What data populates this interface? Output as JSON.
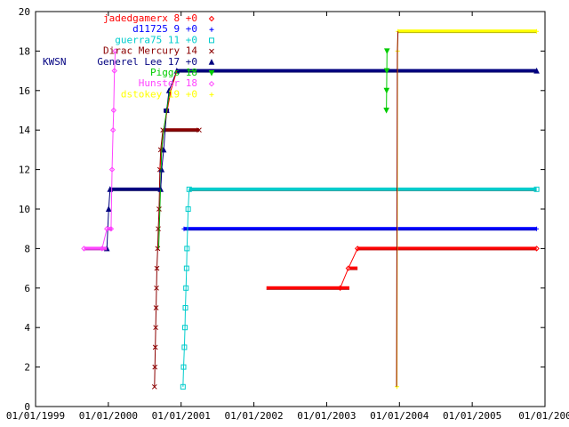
{
  "chart_data": {
    "type": "line",
    "title": "",
    "xlabel": "",
    "ylabel": "",
    "xlim": [
      "1999-01-01",
      "2006-01-01"
    ],
    "ylim": [
      0,
      20
    ],
    "grid": false,
    "legend_position": "top-left",
    "x_ticks": [
      "01/01/1999",
      "01/01/2000",
      "01/01/2001",
      "01/01/2002",
      "01/01/2003",
      "01/01/2004",
      "01/01/2005",
      "01/01/200"
    ],
    "y_ticks": [
      "0",
      "2",
      "4",
      "6",
      "8",
      "10",
      "12",
      "14",
      "16",
      "18",
      "20"
    ],
    "series": [
      {
        "name": "jadedgamerx 8 +0",
        "color": "#ff0000",
        "marker": "diamond",
        "points": [
          [
            "2003-03-10",
            6
          ],
          [
            "2003-04-20",
            7
          ],
          [
            "2003-06-05",
            8
          ],
          [
            "2005-11-20",
            8
          ]
        ],
        "bars": [
          [
            "2002-03-05",
            "2003-04-25",
            6
          ],
          [
            "2003-04-25",
            "2003-06-05",
            7
          ],
          [
            "2003-06-05",
            "2005-11-20",
            8
          ]
        ]
      },
      {
        "name": "d11725 9 +0",
        "color": "#0000ff",
        "marker": "plus",
        "points": [
          [
            "2001-01-15",
            9
          ],
          [
            "2005-11-20",
            9
          ]
        ],
        "bars": [
          [
            "2001-01-15",
            "2005-11-20",
            9
          ]
        ]
      },
      {
        "name": "guerra75 11 +0",
        "color": "#00cccc",
        "marker": "square",
        "points": [
          [
            "2001-01-10",
            1
          ],
          [
            "2001-01-13",
            2
          ],
          [
            "2001-01-17",
            3
          ],
          [
            "2001-01-20",
            4
          ],
          [
            "2001-01-22",
            5
          ],
          [
            "2001-01-25",
            6
          ],
          [
            "2001-01-28",
            7
          ],
          [
            "2001-01-30",
            8
          ],
          [
            "2001-02-05",
            10
          ],
          [
            "2001-02-10",
            11
          ],
          [
            "2005-11-20",
            11
          ]
        ],
        "bars": [
          [
            "2001-02-10",
            "2005-11-20",
            11
          ]
        ]
      },
      {
        "name": "Dirac Mercury 14",
        "color": "#8b0000",
        "marker": "x",
        "points": [
          [
            "2000-08-20",
            1
          ],
          [
            "2000-08-22",
            2
          ],
          [
            "2000-08-24",
            3
          ],
          [
            "2000-08-26",
            4
          ],
          [
            "2000-08-28",
            5
          ],
          [
            "2000-08-30",
            6
          ],
          [
            "2000-09-01",
            7
          ],
          [
            "2000-09-05",
            8
          ],
          [
            "2000-09-08",
            9
          ],
          [
            "2000-09-12",
            10
          ],
          [
            "2000-09-16",
            12
          ],
          [
            "2000-09-20",
            13
          ],
          [
            "2000-10-01",
            14
          ],
          [
            "2001-04-01",
            14
          ]
        ],
        "bars": [
          [
            "2000-10-01",
            "2001-04-01",
            14
          ]
        ]
      },
      {
        "name": "Generel Lee 17 +0",
        "color": "#000080",
        "marker": "triangle",
        "points": [
          [
            "1999-12-25",
            8
          ],
          [
            "2000-01-03",
            10
          ],
          [
            "2000-01-10",
            11
          ],
          [
            "2000-09-20",
            11
          ],
          [
            "2000-09-25",
            12
          ],
          [
            "2000-10-05",
            13
          ],
          [
            "2000-10-20",
            15
          ],
          [
            "2000-11-01",
            16
          ],
          [
            "2000-12-10",
            17
          ],
          [
            "2005-11-20",
            17
          ]
        ],
        "bars": [
          [
            "2000-01-10",
            "2000-09-20",
            11
          ],
          [
            "2000-10-05",
            "2000-11-01",
            15
          ],
          [
            "2000-12-10",
            "2005-11-20",
            17
          ]
        ]
      },
      {
        "name": "Piggs 18",
        "color": "#00cc00",
        "marker": "triangle-down",
        "points": [
          [
            "2003-10-28",
            15
          ],
          [
            "2003-10-29",
            16
          ],
          [
            "2003-10-30",
            17
          ],
          [
            "2003-10-31",
            18
          ]
        ],
        "bars": []
      },
      {
        "name": "Hunster 18",
        "color": "#ff44ff",
        "marker": "diamond",
        "points": [
          [
            "1999-09-01",
            8
          ],
          [
            "1999-12-01",
            8
          ],
          [
            "1999-12-25",
            9
          ],
          [
            "2000-01-15",
            9
          ],
          [
            "2000-01-20",
            12
          ],
          [
            "2000-01-25",
            14
          ],
          [
            "2000-01-28",
            15
          ],
          [
            "2000-02-01",
            17
          ],
          [
            "2000-02-05",
            18
          ]
        ],
        "bars": [
          [
            "1999-09-01",
            "1999-12-25",
            8
          ],
          [
            "1999-12-25",
            "2000-01-20",
            9
          ]
        ]
      },
      {
        "name": "dstokey 19 +0",
        "color": "#ffff00",
        "marker": "plus",
        "points": [
          [
            "2003-12-20",
            1
          ],
          [
            "2003-12-23",
            18
          ],
          [
            "2003-12-25",
            19
          ],
          [
            "2005-11-20",
            19
          ]
        ],
        "bars": [
          [
            "2003-12-25",
            "2005-11-20",
            19
          ]
        ]
      }
    ],
    "extra_lines": [
      {
        "color": "#8b0000",
        "points": [
          [
            "2003-12-18",
            1
          ],
          [
            "2003-12-22",
            18
          ],
          [
            "2003-12-25",
            19
          ]
        ]
      },
      {
        "color": "#ff0000",
        "points": [
          [
            "2000-09-16",
            12
          ],
          [
            "2000-10-05",
            14
          ],
          [
            "2000-11-10",
            16
          ],
          [
            "2000-12-10",
            17
          ]
        ]
      },
      {
        "color": "#00aa00",
        "points": [
          [
            "2000-09-10",
            8
          ],
          [
            "2000-09-25",
            13
          ],
          [
            "2000-10-05",
            14
          ],
          [
            "2000-11-05",
            16
          ]
        ]
      },
      {
        "color": "#000080",
        "points": [
          [
            "2000-09-20",
            11
          ],
          [
            "2000-09-25",
            12
          ]
        ]
      },
      {
        "color": "#00cc00",
        "points": [
          [
            "2001-02-01",
            17
          ],
          [
            "2001-03-20",
            17
          ]
        ]
      }
    ],
    "legend_prefix": "KWSN"
  }
}
